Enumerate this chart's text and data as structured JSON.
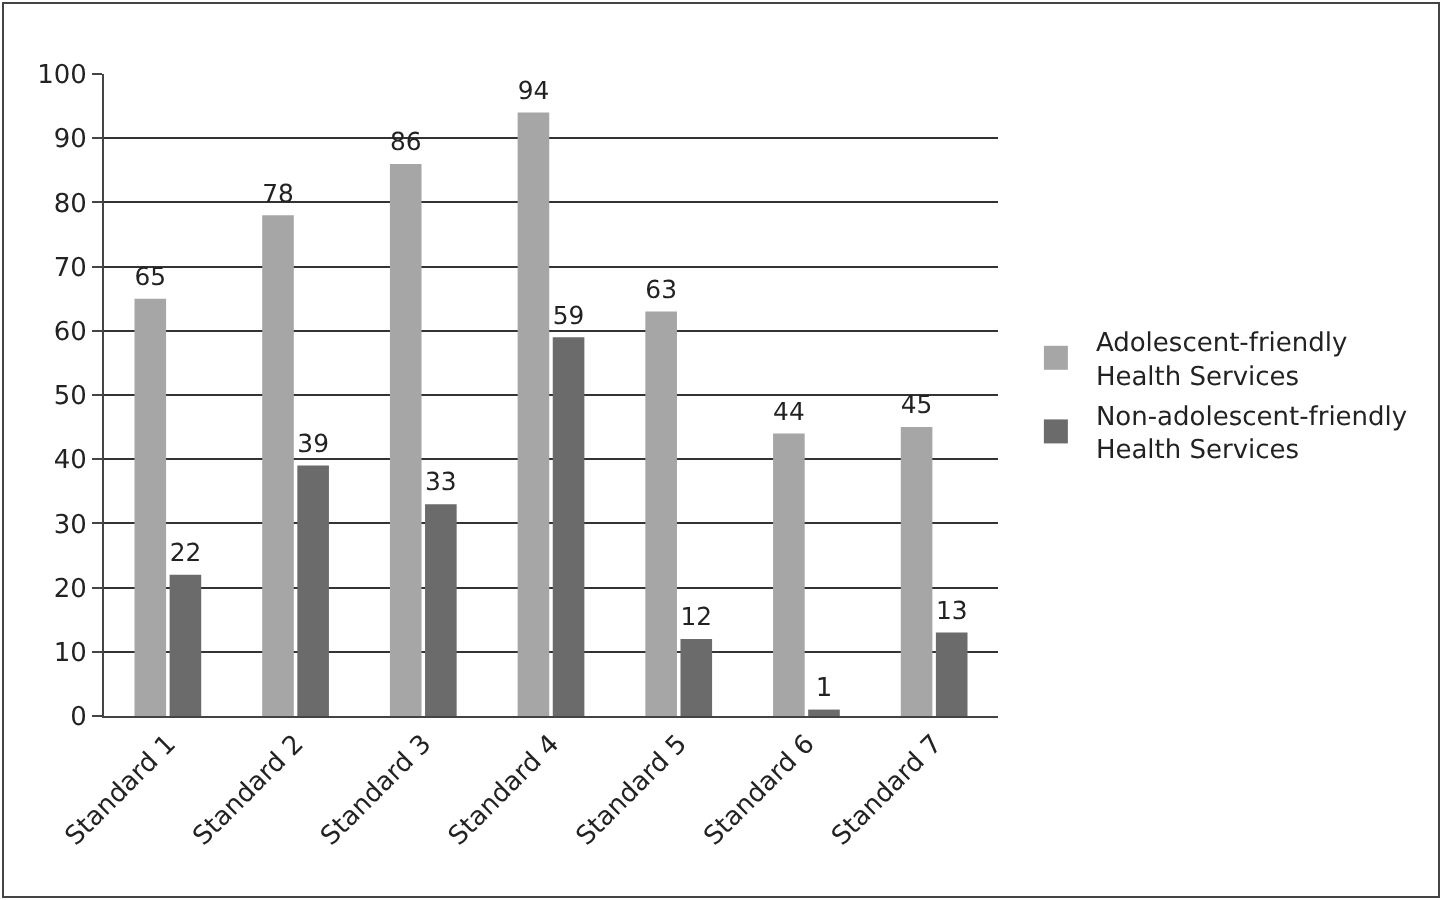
{
  "chart_data": {
    "type": "bar",
    "categories": [
      "Standard 1",
      "Standard 2",
      "Standard 3",
      "Standard 4",
      "Standard 5",
      "Standard 6",
      "Standard 7"
    ],
    "series": [
      {
        "name": "Adolescent-friendly Health Services",
        "color": "#a6a6a6",
        "values": [
          65,
          78,
          86,
          94,
          63,
          44,
          45
        ]
      },
      {
        "name": "Non-adolescent-friendly Health Services",
        "color": "#6b6b6b",
        "values": [
          22,
          39,
          33,
          59,
          12,
          1,
          13
        ]
      }
    ],
    "ylim": [
      0,
      100
    ],
    "yticks": [
      0,
      10,
      20,
      30,
      40,
      50,
      60,
      70,
      80,
      90,
      100
    ],
    "grid": "y",
    "legend": "right",
    "data_labels": true
  }
}
